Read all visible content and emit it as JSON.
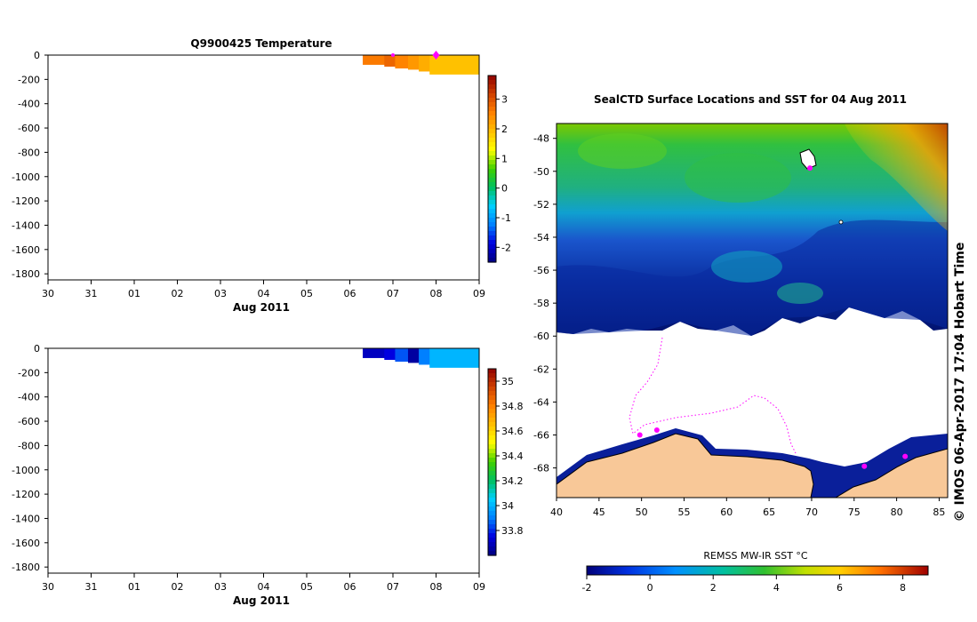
{
  "chart_data": [
    {
      "type": "heatmap",
      "title": "Q9900425  Temperature",
      "xlabel": "Aug 2011",
      "x_ticks": [
        "30",
        "31",
        "01",
        "02",
        "03",
        "04",
        "05",
        "06",
        "07",
        "08",
        "09"
      ],
      "y_ticks": [
        "0",
        "-200",
        "-400",
        "-600",
        "-800",
        "-1000",
        "-1200",
        "-1400",
        "-1600",
        "-1800"
      ],
      "ylim": [
        -1850,
        0
      ],
      "profiles": [
        {
          "day": 7.3,
          "depth": 80,
          "value": 2.6
        },
        {
          "day": 7.8,
          "depth": 95,
          "value": 2.8
        },
        {
          "day": 8.05,
          "depth": 110,
          "value": 2.5
        },
        {
          "day": 8.35,
          "depth": 120,
          "value": 2.3
        },
        {
          "day": 8.6,
          "depth": 135,
          "value": 2.1
        },
        {
          "day": 8.85,
          "depth": 160,
          "value": 1.9
        }
      ],
      "colorbar": {
        "min": -2.5,
        "max": 3.8,
        "ticks": [
          "3",
          "2",
          "1",
          "0",
          "-1",
          "-2"
        ],
        "colors": [
          "#000080",
          "#0000e0",
          "#0080ff",
          "#00d0ff",
          "#00c060",
          "#40d000",
          "#ffff00",
          "#ffc000",
          "#ff8000",
          "#d04000",
          "#900000"
        ]
      },
      "surface_markers": [
        8.0,
        9.0
      ]
    },
    {
      "type": "heatmap",
      "title": "",
      "xlabel": "Aug 2011",
      "x_ticks": [
        "30",
        "31",
        "01",
        "02",
        "03",
        "04",
        "05",
        "06",
        "07",
        "08",
        "09"
      ],
      "y_ticks": [
        "0",
        "-200",
        "-400",
        "-600",
        "-800",
        "-1000",
        "-1200",
        "-1400",
        "-1600",
        "-1800"
      ],
      "ylim": [
        -1850,
        0
      ],
      "profiles": [
        {
          "day": 7.3,
          "depth": 80,
          "value": 33.7
        },
        {
          "day": 7.8,
          "depth": 95,
          "value": 33.75
        },
        {
          "day": 8.05,
          "depth": 110,
          "value": 33.85
        },
        {
          "day": 8.35,
          "depth": 120,
          "value": 33.65
        },
        {
          "day": 8.6,
          "depth": 135,
          "value": 33.9
        },
        {
          "day": 8.85,
          "depth": 160,
          "value": 34.0
        }
      ],
      "colorbar": {
        "min": 33.6,
        "max": 35.1,
        "ticks": [
          "35",
          "34.8",
          "34.6",
          "34.4",
          "34.2",
          "34",
          "33.8"
        ],
        "colors": [
          "#000080",
          "#0000e0",
          "#0080ff",
          "#00d0ff",
          "#00c060",
          "#40d000",
          "#ffff00",
          "#ffc000",
          "#ff8000",
          "#d04000",
          "#900000"
        ]
      }
    },
    {
      "type": "map",
      "title": "SealCTD Surface Locations and SST for 04 Aug 2011",
      "x_ticks": [
        "40",
        "45",
        "50",
        "55",
        "60",
        "65",
        "70",
        "75",
        "80",
        "85"
      ],
      "y_ticks": [
        "-48",
        "-50",
        "-52",
        "-54",
        "-56",
        "-58",
        "-60",
        "-62",
        "-64",
        "-66",
        "-68"
      ],
      "xlim": [
        40,
        86
      ],
      "ylim": [
        -69.8,
        -47.1
      ],
      "colorbar_label": "REMSS MW-IR SST °C",
      "colorbar_ticks": [
        "-2",
        "0",
        "2",
        "4",
        "6",
        "8"
      ],
      "colorbar_range": [
        -2,
        8.8
      ],
      "seal_locations": [
        {
          "lon": 69.8,
          "lat": -49.8
        },
        {
          "lon": 49.8,
          "lat": -66.0
        },
        {
          "lon": 51.8,
          "lat": -65.7
        },
        {
          "lon": 76.2,
          "lat": -67.9
        },
        {
          "lon": 81.0,
          "lat": -67.3
        }
      ],
      "sst_colors": {
        "warm": "#ffa000",
        "mid": "#40c040",
        "cool": "#00a0ff",
        "cold": "#0010a0",
        "land": "#f8c898"
      }
    }
  ],
  "timestamp_label": "© IMOS 06-Apr-2017 17:04 Hobart Time"
}
